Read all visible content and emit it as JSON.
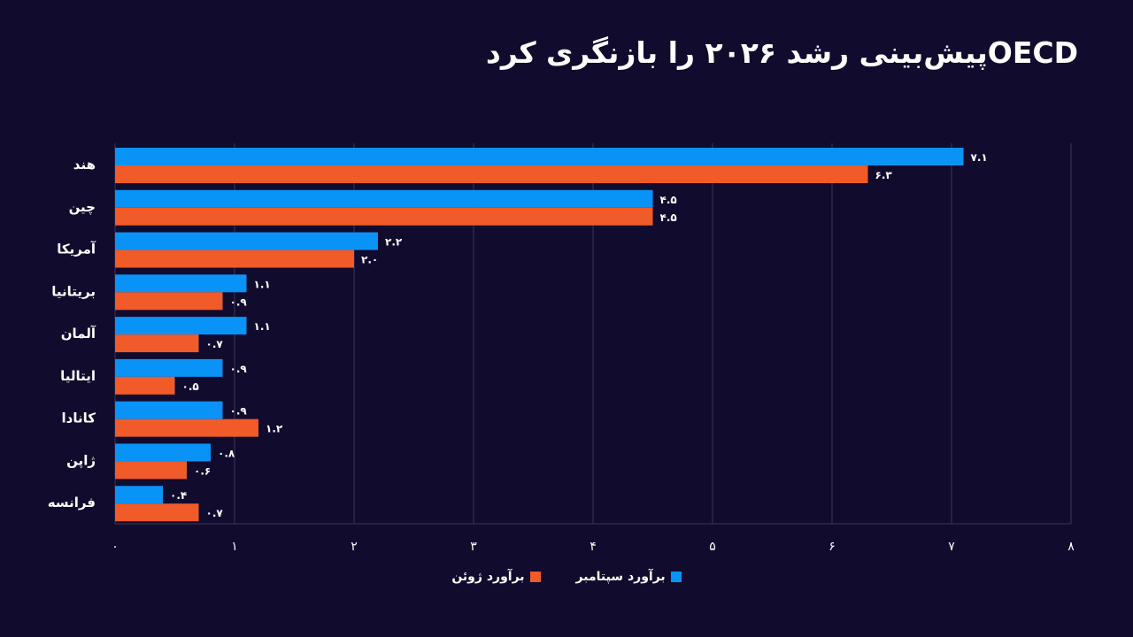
{
  "chart_data": {
    "type": "bar",
    "orientation": "horizontal",
    "title": "OECDپیش‌بینی رشد ۲۰۲۶ را بازنگری کرد",
    "categories": [
      "هند",
      "چین",
      "آمریکا",
      "بریتانیا",
      "آلمان",
      "ایتالیا",
      "کانادا",
      "ژاپن",
      "فرانسه"
    ],
    "series": [
      {
        "name": "برآورد سپتامبر",
        "color": "#0a93f7",
        "values": [
          7.1,
          4.5,
          2.2,
          1.1,
          1.1,
          0.9,
          0.9,
          0.8,
          0.4
        ],
        "labels": [
          "۷.۱",
          "۴.۵",
          "۲.۲",
          "۱.۱",
          "۱.۱",
          "۰.۹",
          "۰.۹",
          "۰.۸",
          "۰.۴"
        ]
      },
      {
        "name": "برآورد ژوئن",
        "color": "#f15a29",
        "values": [
          6.3,
          4.5,
          2.0,
          0.9,
          0.7,
          0.5,
          1.2,
          0.6,
          0.7
        ],
        "labels": [
          "۶.۳",
          "۴.۵",
          "۲.۰",
          "۰.۹",
          "۰.۷",
          "۰.۵",
          "۱.۲",
          "۰.۶",
          "۰.۷"
        ]
      }
    ],
    "xlim": [
      0,
      8
    ],
    "x_ticks": [
      0,
      1,
      2,
      3,
      4,
      5,
      6,
      7,
      8
    ],
    "x_tick_labels": [
      "۰",
      "۱",
      "۲",
      "۳",
      "۴",
      "۵",
      "۶",
      "۷",
      "۸"
    ],
    "grid": "vertical",
    "legend": "bottom-center",
    "colors": {
      "background": "#110b2e",
      "grid": "#3a3658",
      "text": "#ffffff"
    }
  }
}
